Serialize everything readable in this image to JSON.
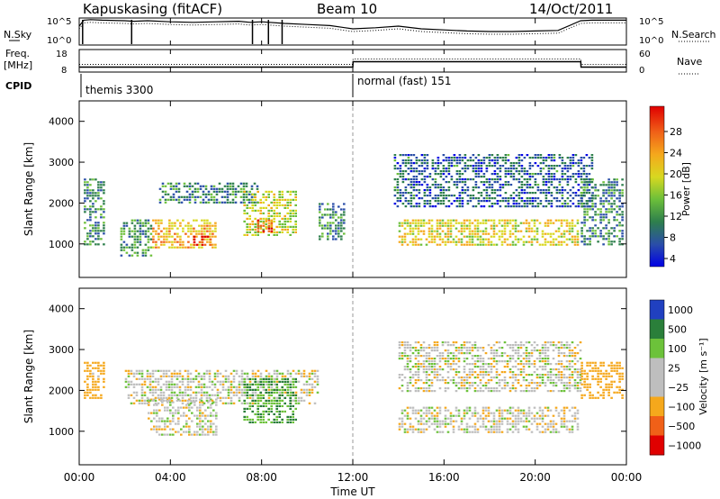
{
  "header": {
    "station": "Kapuskasing (fitACF)",
    "beam": "Beam 10",
    "date": "14/Oct/2011"
  },
  "top_panels": {
    "nsky": {
      "label": "N.Sky",
      "ticks": [
        "10^5",
        "10^0"
      ],
      "right_ticks": [
        "10^5",
        "10^0"
      ],
      "right_label": "N.Search"
    },
    "freq": {
      "label_line1": "Freq.",
      "label_line2": "[MHz]",
      "ticks": [
        "18",
        "8"
      ],
      "right_ticks": [
        "60",
        "0"
      ],
      "right_label": "Nave"
    },
    "cpid": {
      "label": "CPID",
      "segments": [
        {
          "name": "themis 3300",
          "start_hour": 0,
          "end_hour": 12
        },
        {
          "name": "normal (fast) 151",
          "start_hour": 12,
          "end_hour": 24
        }
      ]
    }
  },
  "xaxis": {
    "label": "Time UT",
    "ticks": [
      "00:00",
      "04:00",
      "08:00",
      "12:00",
      "16:00",
      "20:00",
      "00:00"
    ]
  },
  "power_panel": {
    "ylabel": "Slant Range [km]",
    "yticks": [
      "4000",
      "3000",
      "2000",
      "1000"
    ],
    "colorbar": {
      "label": "Power [dB]",
      "ticks": [
        "28",
        "24",
        "20",
        "16",
        "12",
        "8",
        "4"
      ]
    }
  },
  "velocity_panel": {
    "ylabel": "Slant Range [km]",
    "yticks": [
      "4000",
      "3000",
      "2000",
      "1000"
    ],
    "colorbar": {
      "label": "Velocity [m s⁻¹]",
      "ticks": [
        "1000",
        "500",
        "100",
        "25",
        "−25",
        "−100",
        "−500",
        "−1000"
      ]
    }
  },
  "colors": {
    "power_scale": [
      "#0000e6",
      "#2a4ea8",
      "#2e7f4c",
      "#6cbf3a",
      "#d8d820",
      "#f5a81c",
      "#f06018",
      "#e00000"
    ],
    "velocity_scale": [
      "#2040c0",
      "#2a7f3a",
      "#6cc23a",
      "#bebebe",
      "#bebebe",
      "#f5a81c",
      "#f06018",
      "#e00000"
    ]
  },
  "chart_data": [
    {
      "type": "line",
      "title": "N.Sky / N.Search",
      "x": [
        0,
        0.2,
        0.5,
        1,
        2,
        2.4,
        3,
        4,
        5,
        6,
        7,
        7.5,
        8,
        9,
        10,
        11,
        12,
        13,
        14,
        15,
        16,
        17,
        18,
        19,
        20,
        21,
        22,
        22.5,
        23,
        24
      ],
      "series": [
        {
          "name": "N.Sky",
          "values": [
            3.5,
            4.6,
            4.7,
            4.6,
            4.5,
            4.4,
            4.5,
            4.3,
            4.2,
            4.3,
            4.4,
            4.2,
            4.3,
            4.0,
            3.8,
            3.6,
            3.0,
            3.2,
            3.5,
            3.0,
            2.8,
            2.6,
            2.5,
            2.5,
            2.6,
            2.7,
            4.5,
            4.6,
            4.6,
            4.6
          ]
        }
      ],
      "ylim": [
        0,
        5
      ]
    },
    {
      "type": "line",
      "title": "Freq. [MHz] / Nave",
      "x": [
        0,
        12,
        12.01,
        22,
        22.01,
        24
      ],
      "series": [
        {
          "name": "Freq.",
          "values": [
            10.2,
            10.2,
            12.6,
            12.6,
            10.2,
            10.2
          ]
        },
        {
          "name": "Nave",
          "values": [
            32,
            32,
            32,
            32,
            32,
            32
          ]
        }
      ],
      "ylim": [
        8,
        18
      ]
    },
    {
      "type": "heatmap",
      "title": "Power [dB]",
      "xlabel": "Time UT",
      "ylabel": "Slant Range [km]",
      "xlim": [
        0,
        24
      ],
      "ylim": [
        180,
        4500
      ],
      "zlim": [
        0,
        30
      ],
      "regions": [
        {
          "t": [
            0.2,
            1.1
          ],
          "range": [
            1000,
            2600
          ],
          "power": 8
        },
        {
          "t": [
            1.8,
            3.2
          ],
          "range": [
            700,
            1600
          ],
          "power": 10
        },
        {
          "t": [
            3.2,
            6.0
          ],
          "range": [
            900,
            1600
          ],
          "power": 20
        },
        {
          "t": [
            5.0,
            5.8
          ],
          "range": [
            1000,
            1200
          ],
          "power": 28
        },
        {
          "t": [
            3.5,
            7.8
          ],
          "range": [
            2000,
            2500
          ],
          "power": 8
        },
        {
          "t": [
            7.2,
            9.5
          ],
          "range": [
            1200,
            2300
          ],
          "power": 16
        },
        {
          "t": [
            7.8,
            8.5
          ],
          "range": [
            1300,
            1600
          ],
          "power": 26
        },
        {
          "t": [
            10.5,
            11.6
          ],
          "range": [
            1100,
            2000
          ],
          "power": 8
        },
        {
          "t": [
            14.0,
            21.9
          ],
          "range": [
            1000,
            1600
          ],
          "power": 18
        },
        {
          "t": [
            13.8,
            22.5
          ],
          "range": [
            1900,
            3200
          ],
          "power": 6
        },
        {
          "t": [
            22.0,
            23.8
          ],
          "range": [
            1000,
            2600
          ],
          "power": 8
        }
      ]
    },
    {
      "type": "heatmap",
      "title": "Velocity [m s⁻¹]",
      "xlabel": "Time UT",
      "ylabel": "Slant Range [km]",
      "xlim": [
        0,
        24
      ],
      "ylim": [
        180,
        4500
      ],
      "zlim": [
        -1000,
        1000
      ],
      "regions": [
        {
          "t": [
            0.2,
            1.1
          ],
          "range": [
            1800,
            2700
          ],
          "velocity": -150
        },
        {
          "t": [
            3.0,
            6.0
          ],
          "range": [
            900,
            1800
          ],
          "velocity": 0
        },
        {
          "t": [
            2.0,
            10.5
          ],
          "range": [
            1700,
            2500
          ],
          "velocity": 0
        },
        {
          "t": [
            7.2,
            9.5
          ],
          "range": [
            1200,
            2300
          ],
          "velocity": 300
        },
        {
          "t": [
            14.0,
            21.9
          ],
          "range": [
            1000,
            1600
          ],
          "velocity": 0
        },
        {
          "t": [
            14.0,
            22.0
          ],
          "range": [
            2000,
            3200
          ],
          "velocity": 0
        },
        {
          "t": [
            22.0,
            23.8
          ],
          "range": [
            1800,
            2700
          ],
          "velocity": -200
        }
      ]
    }
  ]
}
